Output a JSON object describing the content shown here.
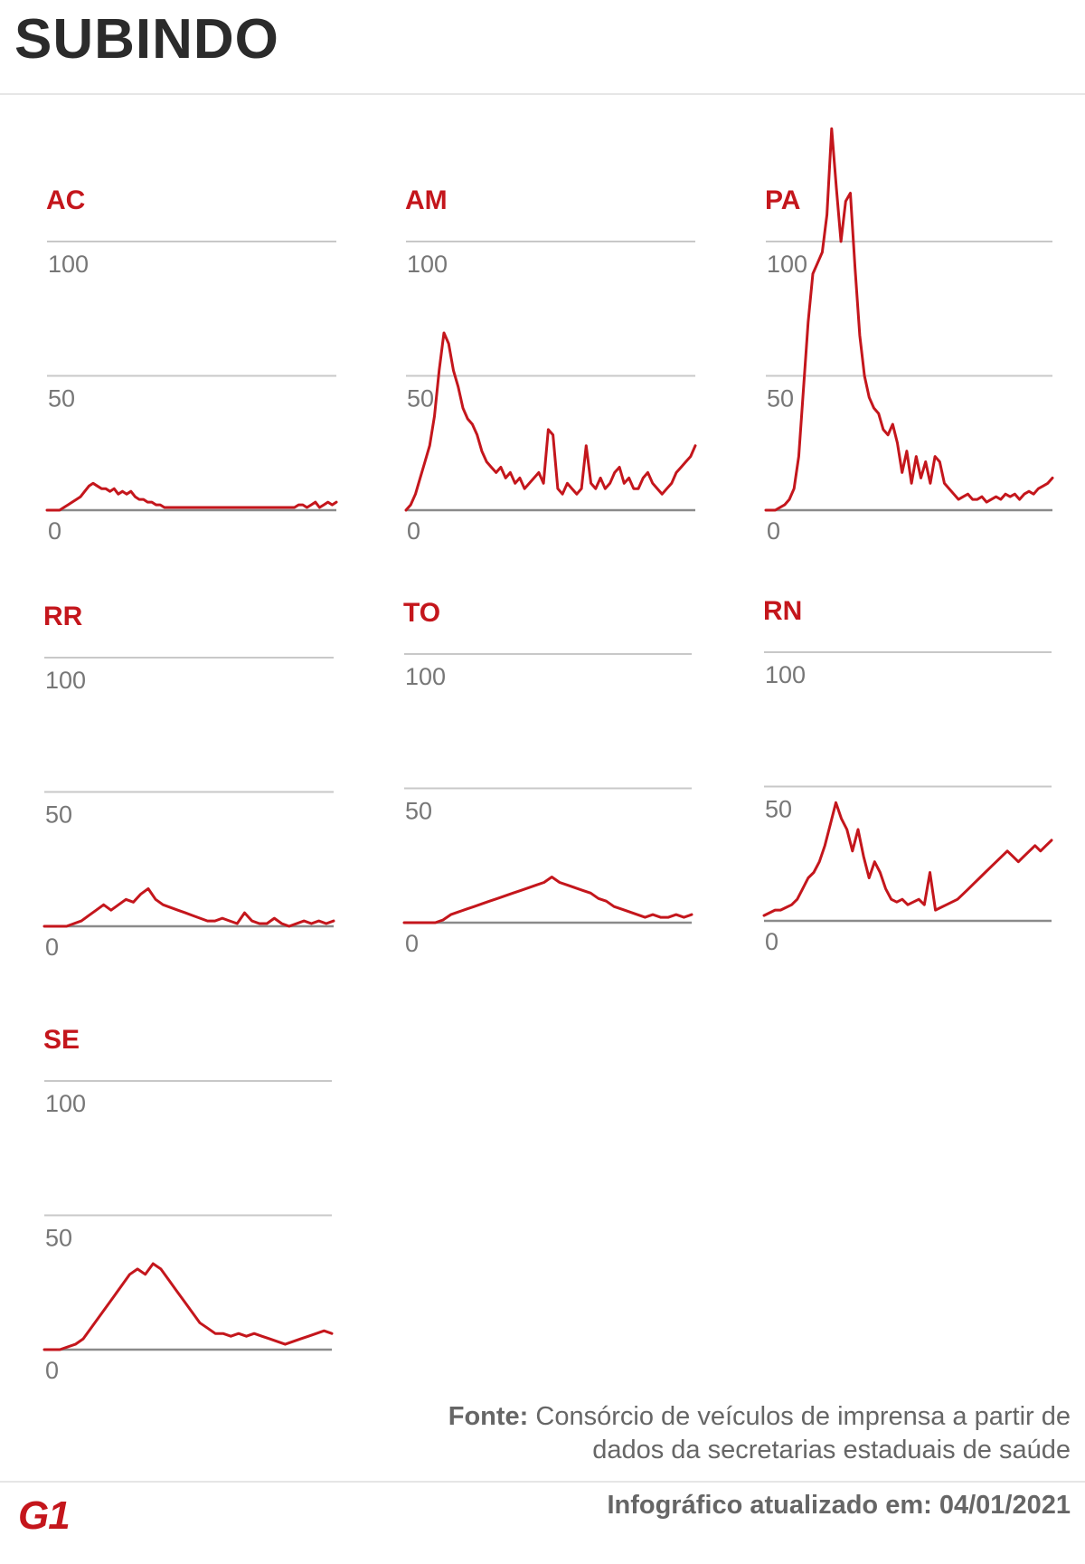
{
  "header": {
    "title": "SUBINDO"
  },
  "footer": {
    "source_label": "Fonte:",
    "source_text": "Consórcio de veículos de imprensa a partir de dados da secretarias estaduais de saúde",
    "logo_text": "G1",
    "updated_label": "Infográfico atualizado em:",
    "updated_date": "04/01/2021"
  },
  "colors": {
    "accent": "#c4161c",
    "text": "#2b2b2b",
    "muted": "#777777",
    "grid": "#c8c8c8"
  },
  "chart_data": [
    {
      "type": "line",
      "title": "AC",
      "ylim": [
        0,
        100
      ],
      "yticks": [
        0,
        50,
        100
      ],
      "grid": true,
      "series": [
        {
          "name": "AC",
          "values": [
            0,
            0,
            0,
            0,
            1,
            2,
            3,
            4,
            5,
            7,
            9,
            10,
            9,
            8,
            8,
            7,
            8,
            6,
            7,
            6,
            7,
            5,
            4,
            4,
            3,
            3,
            2,
            2,
            1,
            1,
            1,
            1,
            1,
            1,
            1,
            1,
            1,
            1,
            1,
            1,
            1,
            1,
            1,
            1,
            1,
            1,
            1,
            1,
            1,
            1,
            1,
            1,
            1,
            1,
            1,
            1,
            1,
            1,
            1,
            1,
            2,
            2,
            1,
            2,
            3,
            1,
            2,
            3,
            2,
            3
          ]
        }
      ]
    },
    {
      "type": "line",
      "title": "AM",
      "ylim": [
        0,
        100
      ],
      "yticks": [
        0,
        50,
        100
      ],
      "grid": true,
      "series": [
        {
          "name": "AM",
          "values": [
            0,
            2,
            6,
            12,
            18,
            24,
            35,
            52,
            66,
            62,
            52,
            46,
            38,
            34,
            32,
            28,
            22,
            18,
            16,
            14,
            16,
            12,
            14,
            10,
            12,
            8,
            10,
            12,
            14,
            10,
            30,
            28,
            8,
            6,
            10,
            8,
            6,
            8,
            24,
            10,
            8,
            12,
            8,
            10,
            14,
            16,
            10,
            12,
            8,
            8,
            12,
            14,
            10,
            8,
            6,
            8,
            10,
            14,
            16,
            18,
            20,
            24
          ]
        }
      ]
    },
    {
      "type": "line",
      "title": "PA",
      "ylim": [
        0,
        100
      ],
      "yticks": [
        0,
        50,
        100
      ],
      "grid": true,
      "series": [
        {
          "name": "PA",
          "values": [
            0,
            0,
            0,
            1,
            2,
            4,
            8,
            20,
            45,
            70,
            88,
            92,
            96,
            110,
            142,
            120,
            100,
            115,
            118,
            90,
            65,
            50,
            42,
            38,
            36,
            30,
            28,
            32,
            25,
            14,
            22,
            10,
            20,
            12,
            18,
            10,
            20,
            18,
            10,
            8,
            6,
            4,
            5,
            6,
            4,
            4,
            5,
            3,
            4,
            5,
            4,
            6,
            5,
            6,
            4,
            6,
            7,
            6,
            8,
            9,
            10,
            12
          ]
        }
      ]
    },
    {
      "type": "line",
      "title": "RR",
      "ylim": [
        0,
        100
      ],
      "yticks": [
        0,
        50,
        100
      ],
      "grid": true,
      "series": [
        {
          "name": "RR",
          "values": [
            0,
            0,
            0,
            0,
            1,
            2,
            4,
            6,
            8,
            6,
            8,
            10,
            9,
            12,
            14,
            10,
            8,
            7,
            6,
            5,
            4,
            3,
            2,
            2,
            3,
            2,
            1,
            5,
            2,
            1,
            1,
            3,
            1,
            0,
            1,
            2,
            1,
            2,
            1,
            2
          ]
        }
      ]
    },
    {
      "type": "line",
      "title": "TO",
      "ylim": [
        0,
        100
      ],
      "yticks": [
        0,
        50,
        100
      ],
      "grid": true,
      "series": [
        {
          "name": "TO",
          "values": [
            0,
            0,
            0,
            0,
            0,
            1,
            3,
            4,
            5,
            6,
            7,
            8,
            9,
            10,
            11,
            12,
            13,
            14,
            15,
            17,
            15,
            14,
            13,
            12,
            11,
            9,
            8,
            6,
            5,
            4,
            3,
            2,
            3,
            2,
            2,
            3,
            2,
            3
          ]
        }
      ]
    },
    {
      "type": "line",
      "title": "RN",
      "ylim": [
        0,
        100
      ],
      "yticks": [
        0,
        50,
        100
      ],
      "grid": true,
      "series": [
        {
          "name": "RN",
          "values": [
            2,
            3,
            4,
            4,
            5,
            6,
            8,
            12,
            16,
            18,
            22,
            28,
            36,
            44,
            38,
            34,
            26,
            34,
            24,
            16,
            22,
            18,
            12,
            8,
            7,
            8,
            6,
            7,
            8,
            6,
            18,
            4,
            5,
            6,
            7,
            8,
            10,
            12,
            14,
            16,
            18,
            20,
            22,
            24,
            26,
            24,
            22,
            24,
            26,
            28,
            26,
            28,
            30
          ]
        }
      ]
    },
    {
      "type": "line",
      "title": "SE",
      "ylim": [
        0,
        100
      ],
      "yticks": [
        0,
        50,
        100
      ],
      "grid": true,
      "series": [
        {
          "name": "SE",
          "values": [
            0,
            0,
            0,
            1,
            2,
            4,
            8,
            12,
            16,
            20,
            24,
            28,
            30,
            28,
            32,
            30,
            26,
            22,
            18,
            14,
            10,
            8,
            6,
            6,
            5,
            6,
            5,
            6,
            5,
            4,
            3,
            2,
            3,
            4,
            5,
            6,
            7,
            6
          ]
        }
      ]
    }
  ]
}
